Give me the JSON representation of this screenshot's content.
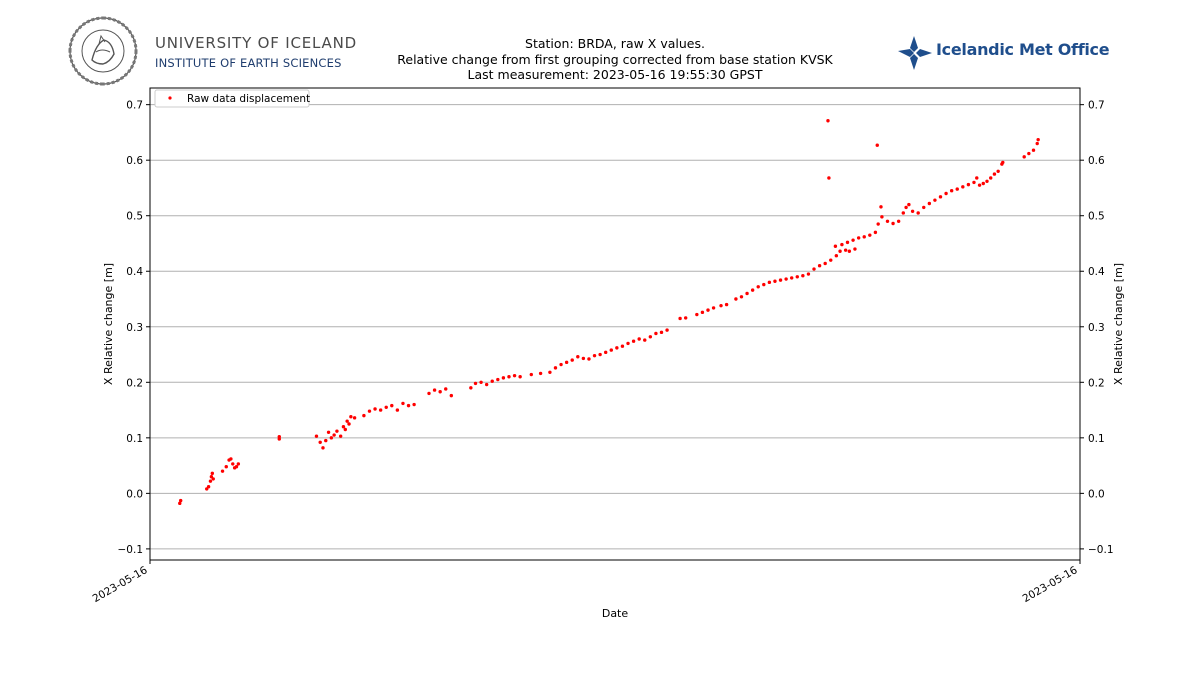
{
  "branding": {
    "university_name": "UNIVERSITY OF ICELAND",
    "institute_name": "INSTITUTE OF EARTH SCIENCES",
    "met_office_name": "Icelandic Met Office",
    "seal_text": "UNIVERSITATIS ISLANDIAE SIGILLUM"
  },
  "chart_data": {
    "type": "scatter",
    "title": "Station: BRDA, raw X values.",
    "subtitle": "Relative change from first grouping corrected from base station KVSK",
    "last_measurement": "Last measurement: 2023-05-16 19:55:30 GPST",
    "xlabel": "Date",
    "ylabel": "X Relative change [m]",
    "ylabel_right": "X Relative change [m]",
    "ylim": [
      -0.12,
      0.73
    ],
    "yticks": [
      -0.1,
      0.0,
      0.1,
      0.2,
      0.3,
      0.4,
      0.5,
      0.6,
      0.7
    ],
    "ytick_labels": [
      "−0.1",
      "0.0",
      "0.1",
      "0.2",
      "0.3",
      "0.4",
      "0.5",
      "0.6",
      "0.7"
    ],
    "xlim": [
      0,
      1
    ],
    "xticks": [
      0,
      1
    ],
    "xtick_labels": [
      "2023-05-16",
      "2023-05-16"
    ],
    "grid": "horizontal",
    "legend": {
      "position": "top-left",
      "entries": [
        "Raw data displacement"
      ]
    },
    "marker_color": "#ff0000",
    "series": [
      {
        "name": "Raw data displacement",
        "points": [
          [
            0.032,
            -0.018
          ],
          [
            0.033,
            -0.013
          ],
          [
            0.061,
            0.008
          ],
          [
            0.063,
            0.012
          ],
          [
            0.065,
            0.022
          ],
          [
            0.066,
            0.03
          ],
          [
            0.067,
            0.036
          ],
          [
            0.068,
            0.026
          ],
          [
            0.078,
            0.04
          ],
          [
            0.082,
            0.048
          ],
          [
            0.085,
            0.06
          ],
          [
            0.087,
            0.062
          ],
          [
            0.089,
            0.053
          ],
          [
            0.091,
            0.046
          ],
          [
            0.093,
            0.048
          ],
          [
            0.095,
            0.053
          ],
          [
            0.139,
            0.102
          ],
          [
            0.139,
            0.098
          ],
          [
            0.179,
            0.103
          ],
          [
            0.183,
            0.092
          ],
          [
            0.186,
            0.082
          ],
          [
            0.189,
            0.095
          ],
          [
            0.192,
            0.11
          ],
          [
            0.195,
            0.1
          ],
          [
            0.198,
            0.105
          ],
          [
            0.201,
            0.112
          ],
          [
            0.205,
            0.103
          ],
          [
            0.208,
            0.12
          ],
          [
            0.21,
            0.115
          ],
          [
            0.212,
            0.13
          ],
          [
            0.214,
            0.125
          ],
          [
            0.216,
            0.138
          ],
          [
            0.22,
            0.136
          ],
          [
            0.23,
            0.14
          ],
          [
            0.236,
            0.148
          ],
          [
            0.242,
            0.152
          ],
          [
            0.248,
            0.15
          ],
          [
            0.254,
            0.155
          ],
          [
            0.26,
            0.158
          ],
          [
            0.266,
            0.15
          ],
          [
            0.272,
            0.162
          ],
          [
            0.278,
            0.158
          ],
          [
            0.284,
            0.16
          ],
          [
            0.3,
            0.18
          ],
          [
            0.306,
            0.186
          ],
          [
            0.312,
            0.183
          ],
          [
            0.318,
            0.188
          ],
          [
            0.324,
            0.176
          ],
          [
            0.345,
            0.19
          ],
          [
            0.35,
            0.198
          ],
          [
            0.356,
            0.2
          ],
          [
            0.362,
            0.196
          ],
          [
            0.368,
            0.202
          ],
          [
            0.374,
            0.205
          ],
          [
            0.38,
            0.208
          ],
          [
            0.386,
            0.21
          ],
          [
            0.392,
            0.212
          ],
          [
            0.398,
            0.21
          ],
          [
            0.41,
            0.214
          ],
          [
            0.42,
            0.216
          ],
          [
            0.43,
            0.218
          ],
          [
            0.436,
            0.226
          ],
          [
            0.442,
            0.232
          ],
          [
            0.448,
            0.236
          ],
          [
            0.454,
            0.24
          ],
          [
            0.46,
            0.246
          ],
          [
            0.466,
            0.243
          ],
          [
            0.472,
            0.242
          ],
          [
            0.478,
            0.248
          ],
          [
            0.484,
            0.25
          ],
          [
            0.49,
            0.254
          ],
          [
            0.496,
            0.258
          ],
          [
            0.502,
            0.262
          ],
          [
            0.508,
            0.265
          ],
          [
            0.514,
            0.27
          ],
          [
            0.52,
            0.274
          ],
          [
            0.526,
            0.278
          ],
          [
            0.532,
            0.276
          ],
          [
            0.538,
            0.282
          ],
          [
            0.544,
            0.288
          ],
          [
            0.55,
            0.29
          ],
          [
            0.556,
            0.294
          ],
          [
            0.57,
            0.315
          ],
          [
            0.576,
            0.316
          ],
          [
            0.588,
            0.322
          ],
          [
            0.594,
            0.326
          ],
          [
            0.6,
            0.33
          ],
          [
            0.606,
            0.334
          ],
          [
            0.614,
            0.338
          ],
          [
            0.62,
            0.34
          ],
          [
            0.63,
            0.35
          ],
          [
            0.636,
            0.354
          ],
          [
            0.642,
            0.36
          ],
          [
            0.648,
            0.366
          ],
          [
            0.654,
            0.372
          ],
          [
            0.66,
            0.376
          ],
          [
            0.666,
            0.38
          ],
          [
            0.672,
            0.382
          ],
          [
            0.678,
            0.384
          ],
          [
            0.684,
            0.386
          ],
          [
            0.69,
            0.388
          ],
          [
            0.696,
            0.39
          ],
          [
            0.702,
            0.392
          ],
          [
            0.708,
            0.395
          ],
          [
            0.714,
            0.404
          ],
          [
            0.72,
            0.41
          ],
          [
            0.726,
            0.414
          ],
          [
            0.732,
            0.42
          ],
          [
            0.738,
            0.428
          ],
          [
            0.742,
            0.436
          ],
          [
            0.748,
            0.438
          ],
          [
            0.752,
            0.436
          ],
          [
            0.758,
            0.44
          ],
          [
            0.729,
            0.671
          ],
          [
            0.73,
            0.568
          ],
          [
            0.737,
            0.445
          ],
          [
            0.744,
            0.448
          ],
          [
            0.75,
            0.452
          ],
          [
            0.756,
            0.456
          ],
          [
            0.762,
            0.46
          ],
          [
            0.768,
            0.462
          ],
          [
            0.774,
            0.465
          ],
          [
            0.78,
            0.47
          ],
          [
            0.783,
            0.485
          ],
          [
            0.782,
            0.627
          ],
          [
            0.786,
            0.516
          ],
          [
            0.787,
            0.498
          ],
          [
            0.793,
            0.49
          ],
          [
            0.799,
            0.486
          ],
          [
            0.805,
            0.49
          ],
          [
            0.81,
            0.505
          ],
          [
            0.813,
            0.515
          ],
          [
            0.816,
            0.52
          ],
          [
            0.82,
            0.508
          ],
          [
            0.826,
            0.505
          ],
          [
            0.832,
            0.515
          ],
          [
            0.838,
            0.522
          ],
          [
            0.844,
            0.528
          ],
          [
            0.85,
            0.534
          ],
          [
            0.856,
            0.54
          ],
          [
            0.862,
            0.545
          ],
          [
            0.868,
            0.548
          ],
          [
            0.874,
            0.552
          ],
          [
            0.88,
            0.556
          ],
          [
            0.886,
            0.56
          ],
          [
            0.889,
            0.568
          ],
          [
            0.892,
            0.555
          ],
          [
            0.896,
            0.558
          ],
          [
            0.9,
            0.562
          ],
          [
            0.904,
            0.568
          ],
          [
            0.908,
            0.575
          ],
          [
            0.912,
            0.58
          ],
          [
            0.916,
            0.593
          ],
          [
            0.917,
            0.596
          ],
          [
            0.94,
            0.606
          ],
          [
            0.945,
            0.612
          ],
          [
            0.95,
            0.618
          ],
          [
            0.954,
            0.63
          ],
          [
            0.955,
            0.637
          ]
        ]
      }
    ]
  }
}
